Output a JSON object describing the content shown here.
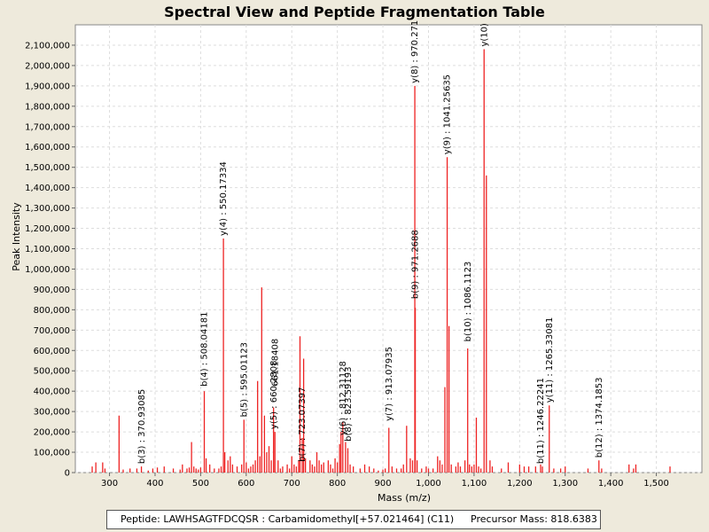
{
  "chart_data": {
    "type": "bar",
    "title": "Spectral View and Peptide Fragmentation Table",
    "xlabel": "Mass (m/z)",
    "ylabel": "Peak Intensity",
    "xlim": [
      225,
      1600
    ],
    "ylim": [
      0,
      2200000
    ],
    "xticks": [
      300,
      400,
      500,
      600,
      700,
      800,
      900,
      1000,
      1100,
      1200,
      1300,
      1400,
      1500
    ],
    "xtick_labels": [
      "300",
      "400",
      "500",
      "600",
      "700",
      "800",
      "900",
      "1,000",
      "1,100",
      "1,200",
      "1,300",
      "1,400",
      "1,500"
    ],
    "yticks": [
      0,
      100000,
      200000,
      300000,
      400000,
      500000,
      600000,
      700000,
      800000,
      900000,
      1000000,
      1100000,
      1200000,
      1300000,
      1400000,
      1500000,
      1600000,
      1700000,
      1800000,
      1900000,
      2000000,
      2100000
    ],
    "ytick_labels": [
      "0",
      "100,000",
      "200,000",
      "300,000",
      "400,000",
      "500,000",
      "600,000",
      "700,000",
      "800,000",
      "900,000",
      "1,000,000",
      "1,100,000",
      "1,200,000",
      "1,300,000",
      "1,400,000",
      "1,500,000",
      "1,600,000",
      "1,700,000",
      "1,800,000",
      "1,900,000",
      "2,000,000",
      "2,100,000"
    ],
    "grid": true,
    "peaks": [
      [
        262,
        30000
      ],
      [
        270,
        50000
      ],
      [
        285,
        50000
      ],
      [
        290,
        20000
      ],
      [
        321,
        280000
      ],
      [
        330,
        15000
      ],
      [
        345,
        20000
      ],
      [
        360,
        20000
      ],
      [
        370,
        30000
      ],
      [
        385,
        10000
      ],
      [
        395,
        20000
      ],
      [
        405,
        25000
      ],
      [
        420,
        30000
      ],
      [
        440,
        20000
      ],
      [
        455,
        15000
      ],
      [
        460,
        40000
      ],
      [
        470,
        20000
      ],
      [
        475,
        25000
      ],
      [
        480,
        150000
      ],
      [
        485,
        30000
      ],
      [
        490,
        20000
      ],
      [
        495,
        15000
      ],
      [
        500,
        25000
      ],
      [
        508,
        400000
      ],
      [
        512,
        70000
      ],
      [
        520,
        40000
      ],
      [
        530,
        20000
      ],
      [
        540,
        20000
      ],
      [
        545,
        30000
      ],
      [
        550,
        1150000
      ],
      [
        553,
        100000
      ],
      [
        560,
        60000
      ],
      [
        565,
        80000
      ],
      [
        570,
        40000
      ],
      [
        580,
        30000
      ],
      [
        590,
        40000
      ],
      [
        595,
        260000
      ],
      [
        600,
        50000
      ],
      [
        605,
        20000
      ],
      [
        610,
        30000
      ],
      [
        615,
        40000
      ],
      [
        620,
        60000
      ],
      [
        625,
        450000
      ],
      [
        630,
        80000
      ],
      [
        634,
        910000
      ],
      [
        640,
        280000
      ],
      [
        645,
        100000
      ],
      [
        650,
        130000
      ],
      [
        655,
        60000
      ],
      [
        660,
        320000
      ],
      [
        663,
        200000
      ],
      [
        670,
        60000
      ],
      [
        675,
        20000
      ],
      [
        680,
        30000
      ],
      [
        690,
        40000
      ],
      [
        695,
        20000
      ],
      [
        700,
        80000
      ],
      [
        705,
        40000
      ],
      [
        710,
        30000
      ],
      [
        715,
        60000
      ],
      [
        718,
        670000
      ],
      [
        723,
        170000
      ],
      [
        726,
        560000
      ],
      [
        730,
        70000
      ],
      [
        740,
        60000
      ],
      [
        745,
        40000
      ],
      [
        750,
        30000
      ],
      [
        755,
        100000
      ],
      [
        760,
        60000
      ],
      [
        765,
        40000
      ],
      [
        770,
        50000
      ],
      [
        780,
        60000
      ],
      [
        785,
        40000
      ],
      [
        790,
        20000
      ],
      [
        795,
        70000
      ],
      [
        800,
        50000
      ],
      [
        805,
        140000
      ],
      [
        808,
        200000
      ],
      [
        812,
        250000
      ],
      [
        818,
        150000
      ],
      [
        823,
        120000
      ],
      [
        828,
        40000
      ],
      [
        835,
        30000
      ],
      [
        850,
        20000
      ],
      [
        860,
        40000
      ],
      [
        870,
        30000
      ],
      [
        880,
        20000
      ],
      [
        890,
        10000
      ],
      [
        900,
        15000
      ],
      [
        905,
        20000
      ],
      [
        913,
        220000
      ],
      [
        920,
        30000
      ],
      [
        930,
        20000
      ],
      [
        940,
        20000
      ],
      [
        945,
        40000
      ],
      [
        952,
        230000
      ],
      [
        960,
        70000
      ],
      [
        965,
        60000
      ],
      [
        970,
        1900000
      ],
      [
        971,
        810000
      ],
      [
        975,
        60000
      ],
      [
        985,
        20000
      ],
      [
        995,
        30000
      ],
      [
        1000,
        20000
      ],
      [
        1010,
        20000
      ],
      [
        1020,
        80000
      ],
      [
        1025,
        60000
      ],
      [
        1030,
        40000
      ],
      [
        1036,
        420000
      ],
      [
        1041,
        1550000
      ],
      [
        1045,
        720000
      ],
      [
        1050,
        40000
      ],
      [
        1060,
        30000
      ],
      [
        1065,
        50000
      ],
      [
        1070,
        30000
      ],
      [
        1080,
        60000
      ],
      [
        1086,
        610000
      ],
      [
        1090,
        40000
      ],
      [
        1095,
        30000
      ],
      [
        1100,
        40000
      ],
      [
        1105,
        270000
      ],
      [
        1110,
        30000
      ],
      [
        1115,
        20000
      ],
      [
        1122,
        2080000
      ],
      [
        1127,
        1460000
      ],
      [
        1135,
        60000
      ],
      [
        1140,
        30000
      ],
      [
        1160,
        20000
      ],
      [
        1175,
        50000
      ],
      [
        1200,
        40000
      ],
      [
        1210,
        30000
      ],
      [
        1220,
        30000
      ],
      [
        1235,
        30000
      ],
      [
        1246,
        40000
      ],
      [
        1250,
        30000
      ],
      [
        1265,
        330000
      ],
      [
        1275,
        20000
      ],
      [
        1290,
        20000
      ],
      [
        1300,
        30000
      ],
      [
        1350,
        20000
      ],
      [
        1374,
        60000
      ],
      [
        1380,
        20000
      ],
      [
        1440,
        40000
      ],
      [
        1450,
        20000
      ],
      [
        1455,
        40000
      ],
      [
        1530,
        30000
      ]
    ],
    "annotations": [
      {
        "label": "b(3) : 370.93085",
        "x": 370.93,
        "y": 30000
      },
      {
        "label": "b(4) : 508.04181",
        "x": 508.04,
        "y": 410000
      },
      {
        "label": "y(4) : 550.17334",
        "x": 550.17,
        "y": 1150000
      },
      {
        "label": "b(5) : 595.01123",
        "x": 595.01,
        "y": 260000
      },
      {
        "label": "y(5) : 660.2808",
        "x": 660.28,
        "y": 200000
      },
      {
        "label": "661.18408",
        "x": 663.5,
        "y": 410000
      },
      {
        "label": "b(7) : 723.07397",
        "x": 723.07,
        "y": 40000
      },
      {
        "label": "y(6) : 812.31128",
        "x": 812.31,
        "y": 170000
      },
      {
        "label": "b(8) : 823.59193",
        "x": 823.59,
        "y": 140000
      },
      {
        "label": "y(7) : 913.07935",
        "x": 913.08,
        "y": 240000
      },
      {
        "label": "y(8) : 970.271",
        "x": 970.27,
        "y": 1900000
      },
      {
        "label": "b(9) : 971.2688",
        "x": 971.27,
        "y": 840000
      },
      {
        "label": "y(9) : 1041.25635",
        "x": 1041.26,
        "y": 1550000
      },
      {
        "label": "b(10) : 1086.1123",
        "x": 1086.11,
        "y": 630000
      },
      {
        "label": "y(10)",
        "x": 1122.5,
        "y": 2080000
      },
      {
        "label": "b(11) : 1246.22241",
        "x": 1246.22,
        "y": 30000
      },
      {
        "label": "y(11) : 1265.33081",
        "x": 1265.33,
        "y": 330000
      },
      {
        "label": "b(12) : 1374.1853",
        "x": 1374.19,
        "y": 60000
      }
    ],
    "bar_color": "#ee2222"
  },
  "legend": {
    "peptide": "Peptide: LAWHSAGTFDCQSR : Carbamidomethyl[+57.021464] (C11)",
    "precursor": "Precursor Mass: 818.6383"
  }
}
